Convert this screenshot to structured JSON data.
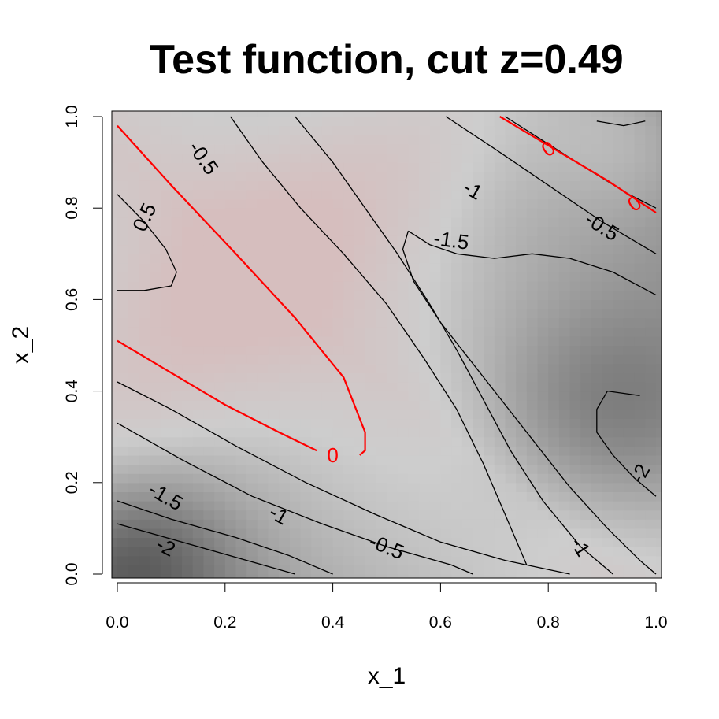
{
  "chart_data": {
    "type": "heatmap",
    "title": "Test function, cut z=0.49",
    "xlabel": "x_1",
    "ylabel": "x_2",
    "xlim": [
      0.0,
      1.0
    ],
    "ylim": [
      0.0,
      1.0
    ],
    "x_ticks": [
      "0.0",
      "0.2",
      "0.4",
      "0.6",
      "0.8",
      "1.0"
    ],
    "y_ticks": [
      "0.0",
      "0.2",
      "0.4",
      "0.6",
      "0.8",
      "1.0"
    ],
    "grid": false,
    "legend": "none",
    "colors": {
      "highlight_level": "#ff0000",
      "positive_fill": "#d6c2c2",
      "lowest_fill": "#555555",
      "contour": "#000000"
    },
    "contours": [
      {
        "level": -2,
        "label": "-2",
        "color": "#000000",
        "points": [
          [
            0.0,
            0.11
          ],
          [
            0.33,
            0.0
          ]
        ]
      },
      {
        "level": -2,
        "label": "-2",
        "color": "#000000",
        "points": [
          [
            0.97,
            0.39
          ],
          [
            0.91,
            0.4
          ],
          [
            0.89,
            0.36
          ],
          [
            0.89,
            0.31
          ],
          [
            0.92,
            0.26
          ],
          [
            0.96,
            0.21
          ],
          [
            1.0,
            0.17
          ]
        ]
      },
      {
        "level": -1.5,
        "label": "-1.5",
        "color": "#000000",
        "points": [
          [
            0.0,
            0.33
          ],
          [
            0.12,
            0.25
          ],
          [
            0.25,
            0.17
          ],
          [
            0.38,
            0.11
          ],
          [
            0.5,
            0.06
          ],
          [
            0.62,
            0.02
          ],
          [
            0.66,
            0.0
          ]
        ]
      },
      {
        "level": -1.5,
        "label": "-1.5",
        "color": "#000000",
        "points": [
          [
            0.54,
            0.75
          ],
          [
            0.53,
            0.71
          ],
          [
            0.55,
            0.64
          ],
          [
            0.6,
            0.55
          ],
          [
            0.66,
            0.46
          ],
          [
            0.72,
            0.37
          ],
          [
            0.78,
            0.28
          ],
          [
            0.84,
            0.19
          ],
          [
            0.91,
            0.1
          ],
          [
            0.97,
            0.03
          ],
          [
            1.0,
            0.0
          ]
        ]
      },
      {
        "level": -1.5,
        "label": "-1.5",
        "color": "#000000",
        "points": [
          [
            1.0,
            0.61
          ],
          [
            0.92,
            0.66
          ],
          [
            0.84,
            0.69
          ],
          [
            0.77,
            0.7
          ],
          [
            0.7,
            0.69
          ],
          [
            0.63,
            0.7
          ],
          [
            0.58,
            0.72
          ],
          [
            0.54,
            0.75
          ]
        ]
      },
      {
        "level": -1,
        "label": "-1",
        "color": "#000000",
        "points": [
          [
            0.0,
            0.42
          ],
          [
            0.1,
            0.36
          ],
          [
            0.22,
            0.28
          ],
          [
            0.35,
            0.2
          ],
          [
            0.48,
            0.13
          ],
          [
            0.6,
            0.07
          ],
          [
            0.72,
            0.03
          ],
          [
            0.84,
            0.0
          ]
        ]
      },
      {
        "level": -1,
        "label": "-1",
        "color": "#000000",
        "points": [
          [
            0.33,
            1.0
          ],
          [
            0.4,
            0.9
          ],
          [
            0.46,
            0.8
          ],
          [
            0.52,
            0.7
          ],
          [
            0.58,
            0.59
          ],
          [
            0.63,
            0.49
          ],
          [
            0.68,
            0.38
          ],
          [
            0.73,
            0.27
          ],
          [
            0.79,
            0.16
          ],
          [
            0.86,
            0.06
          ],
          [
            0.92,
            0.0
          ]
        ]
      },
      {
        "level": -1,
        "label": "-1",
        "color": "#000000",
        "points": [
          [
            0.61,
            1.0
          ],
          [
            0.7,
            0.93
          ],
          [
            0.8,
            0.85
          ],
          [
            0.9,
            0.77
          ],
          [
            1.0,
            0.7
          ]
        ]
      },
      {
        "level": -0.5,
        "label": "-0.5",
        "color": "#000000",
        "points": [
          [
            0.21,
            1.0
          ],
          [
            0.27,
            0.9
          ],
          [
            0.34,
            0.8
          ],
          [
            0.42,
            0.7
          ],
          [
            0.5,
            0.59
          ],
          [
            0.57,
            0.47
          ],
          [
            0.63,
            0.36
          ],
          [
            0.68,
            0.24
          ],
          [
            0.72,
            0.13
          ],
          [
            0.76,
            0.02
          ]
        ]
      },
      {
        "level": -0.5,
        "label": "-0.5",
        "color": "#000000",
        "points": [
          [
            0.0,
            0.16
          ],
          [
            0.1,
            0.12
          ],
          [
            0.22,
            0.08
          ],
          [
            0.32,
            0.04
          ],
          [
            0.4,
            0.0
          ]
        ]
      },
      {
        "level": -0.5,
        "label": "-0.5",
        "color": "#000000",
        "points": [
          [
            0.72,
            1.0
          ],
          [
            0.8,
            0.94
          ],
          [
            0.88,
            0.88
          ],
          [
            0.95,
            0.83
          ],
          [
            1.0,
            0.8
          ]
        ]
      },
      {
        "level": 0,
        "label": "0",
        "color": "#ff0000",
        "points": [
          [
            0.0,
            0.98
          ],
          [
            0.1,
            0.85
          ],
          [
            0.22,
            0.7
          ],
          [
            0.33,
            0.56
          ],
          [
            0.42,
            0.43
          ],
          [
            0.46,
            0.31
          ],
          [
            0.46,
            0.27
          ],
          [
            0.45,
            0.26
          ]
        ]
      },
      {
        "level": 0,
        "label": "0",
        "color": "#ff0000",
        "points": [
          [
            0.0,
            0.51
          ],
          [
            0.1,
            0.44
          ],
          [
            0.2,
            0.37
          ],
          [
            0.3,
            0.31
          ],
          [
            0.37,
            0.27
          ]
        ]
      },
      {
        "level": 0,
        "label": "0",
        "color": "#ff0000",
        "points": [
          [
            0.71,
            1.0
          ],
          [
            0.81,
            0.93
          ],
          [
            0.91,
            0.86
          ],
          [
            1.0,
            0.79
          ]
        ]
      },
      {
        "level": 0.5,
        "label": "0.5",
        "color": "#000000",
        "points": [
          [
            0.0,
            0.83
          ],
          [
            0.05,
            0.77
          ],
          [
            0.09,
            0.71
          ],
          [
            0.11,
            0.66
          ],
          [
            0.1,
            0.63
          ],
          [
            0.05,
            0.62
          ],
          [
            0.0,
            0.62
          ]
        ]
      },
      {
        "level": 0.5,
        "label": "",
        "color": "#000000",
        "points": [
          [
            0.89,
            0.99
          ],
          [
            0.94,
            0.98
          ],
          [
            0.98,
            0.99
          ]
        ]
      }
    ],
    "contour_labels": [
      {
        "text": "-2",
        "x": 0.09,
        "y": 0.06,
        "angle": 28,
        "color": "#000000"
      },
      {
        "text": "-2",
        "x": 0.97,
        "y": 0.22,
        "angle": -60,
        "color": "#000000"
      },
      {
        "text": "-1.5",
        "x": 0.09,
        "y": 0.17,
        "angle": 30,
        "color": "#000000"
      },
      {
        "text": "-1.5",
        "x": 0.62,
        "y": 0.73,
        "angle": 8,
        "color": "#000000"
      },
      {
        "text": "-1",
        "x": 0.3,
        "y": 0.13,
        "angle": 30,
        "color": "#000000"
      },
      {
        "text": "-1",
        "x": 0.66,
        "y": 0.84,
        "angle": 30,
        "color": "#000000"
      },
      {
        "text": "-1",
        "x": 0.86,
        "y": 0.06,
        "angle": 58,
        "color": "#000000"
      },
      {
        "text": "-0.5",
        "x": 0.16,
        "y": 0.91,
        "angle": 55,
        "color": "#000000"
      },
      {
        "text": "-0.5",
        "x": 0.5,
        "y": 0.06,
        "angle": 22,
        "color": "#000000"
      },
      {
        "text": "-0.5",
        "x": 0.9,
        "y": 0.76,
        "angle": 32,
        "color": "#000000"
      },
      {
        "text": "0",
        "x": 0.4,
        "y": 0.26,
        "angle": 0,
        "color": "#ff0000"
      },
      {
        "text": "0",
        "x": 0.8,
        "y": 0.93,
        "angle": -35,
        "color": "#ff0000"
      },
      {
        "text": "0",
        "x": 0.96,
        "y": 0.81,
        "angle": -35,
        "color": "#ff0000"
      },
      {
        "text": "0.5",
        "x": 0.05,
        "y": 0.78,
        "angle": -65,
        "color": "#000000"
      }
    ]
  }
}
